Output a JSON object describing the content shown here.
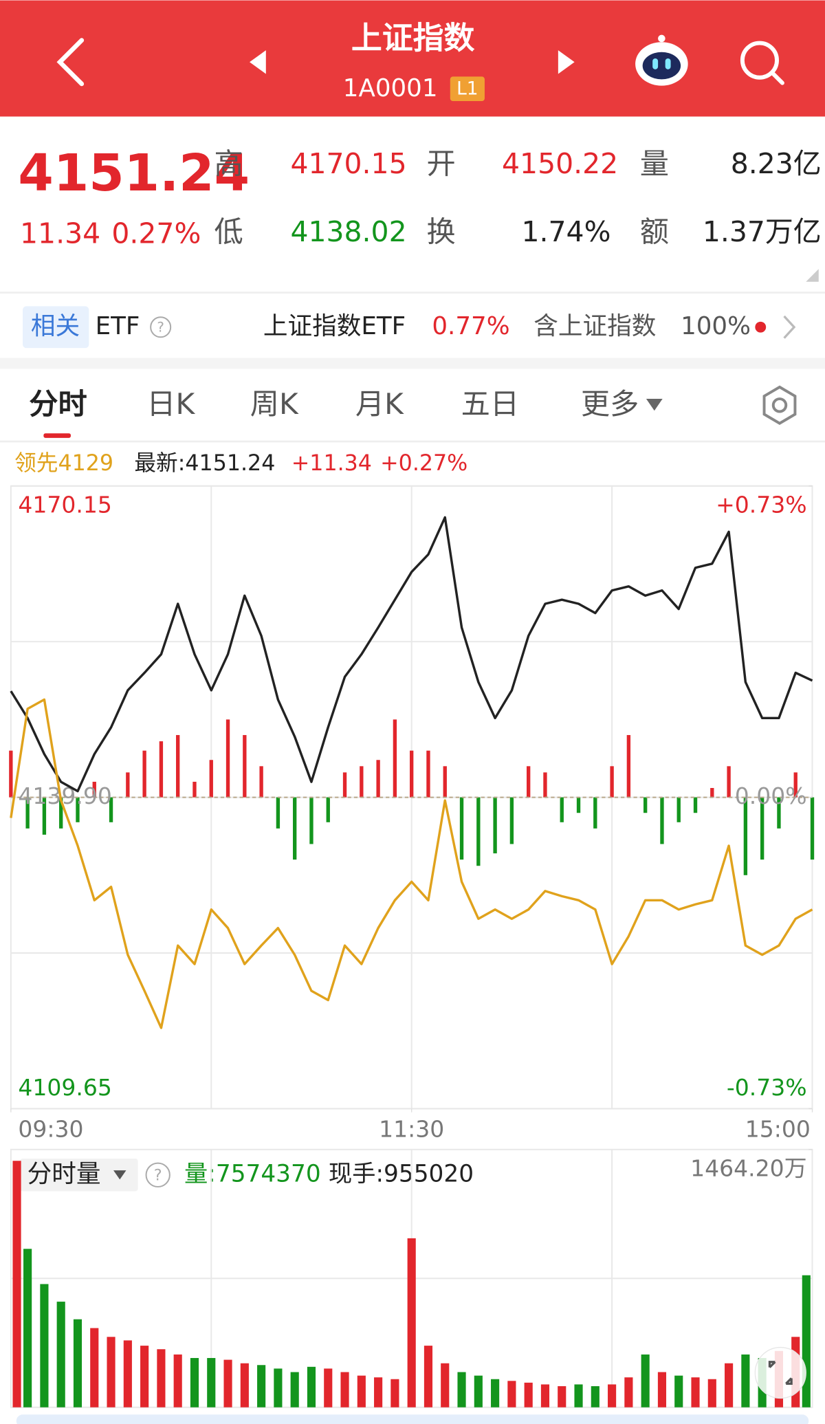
{
  "header": {
    "title": "上证指数",
    "code": "1A0001",
    "badge": "L1"
  },
  "quote": {
    "price": "4151.24",
    "change": "11.34",
    "change_pct": "0.27%",
    "fields": [
      {
        "label": "高",
        "value": "4170.15"
      },
      {
        "label": "开",
        "value": "4150.22"
      },
      {
        "label": "量",
        "value": "8.23亿"
      },
      {
        "label": "低",
        "value": "4138.02"
      },
      {
        "label": "换",
        "value": "1.74%"
      },
      {
        "label": "额",
        "value": "1.37万亿"
      }
    ]
  },
  "etf": {
    "tag": "相关",
    "etf": "ETF",
    "name": "上证指数ETF",
    "pct": "0.77%",
    "contain": "含上证指数",
    "weight": "100%"
  },
  "tabs": [
    "分时",
    "日K",
    "周K",
    "月K",
    "五日",
    "更多"
  ],
  "chart_data": [
    {
      "type": "line",
      "info": {
        "lead": "领先4129",
        "latest": "最新:4151.24",
        "change": "+11.34",
        "pct": "+0.27%"
      },
      "x": [
        0,
        5,
        10,
        15,
        20,
        25,
        30,
        35,
        40,
        45,
        50,
        55,
        60,
        65,
        70,
        75,
        80,
        85,
        90,
        95,
        100,
        105,
        110,
        115,
        120,
        125,
        130,
        135,
        140,
        145,
        150,
        155,
        160,
        165,
        170,
        175,
        180,
        185,
        190,
        195,
        200,
        205,
        210,
        215,
        220,
        225,
        230,
        235,
        240
      ],
      "xlim": [
        0,
        240
      ],
      "xticks": [
        {
          "value": 0,
          "label": "09:30"
        },
        {
          "value": 120,
          "label": "11:30"
        },
        {
          "value": 240,
          "label": "15:00"
        }
      ],
      "ylim": [
        4109.65,
        4170.15
      ],
      "yticks": [
        4109.65,
        {
          "value": 4139.9,
          "label": "4139.90"
        },
        4170.15
      ],
      "y2lim": [
        -0.73,
        0.73
      ],
      "y2ticks": [
        {
          "value": -0.73,
          "label": "-0.73%"
        },
        {
          "value": 0,
          "label": "0.00%"
        },
        {
          "value": 0.73,
          "label": "+0.73%"
        }
      ],
      "grid": true,
      "series": [
        {
          "color": "#222222",
          "values": [
            4150.22,
            4147.6,
            4144.1,
            4141.4,
            4140.5,
            4144.1,
            4146.7,
            4150.3,
            4152.0,
            4153.8,
            4158.7,
            4153.8,
            4150.3,
            4153.8,
            4159.5,
            4155.6,
            4149.4,
            4145.8,
            4141.4,
            4146.7,
            4151.6,
            4153.8,
            4156.4,
            4159.1,
            4161.8,
            4163.5,
            4167.1,
            4156.4,
            4151.1,
            4147.6,
            4150.3,
            4155.6,
            4158.7,
            4159.1,
            4158.7,
            4157.8,
            4160.0,
            4160.4,
            4159.5,
            4160.0,
            4158.2,
            4162.2,
            4162.6,
            4165.7,
            4151.1,
            4147.6,
            4147.6,
            4152.0,
            4151.24
          ]
        },
        {
          "color": "#e0a21c",
          "values": [
            4137.9,
            4148.5,
            4149.4,
            4139.6,
            4135.2,
            4129.9,
            4131.2,
            4124.6,
            4121.1,
            4117.5,
            4125.5,
            4123.7,
            4129.0,
            4127.2,
            4123.7,
            4125.5,
            4127.2,
            4124.6,
            4121.1,
            4120.2,
            4125.5,
            4123.7,
            4127.2,
            4129.9,
            4131.7,
            4129.9,
            4139.6,
            4131.7,
            4128.1,
            4129.0,
            4128.1,
            4129.0,
            4130.8,
            4130.3,
            4129.9,
            4129.0,
            4123.7,
            4126.4,
            4129.9,
            4129.9,
            4129.0,
            4129.5,
            4129.9,
            4135.2,
            4125.5,
            4124.6,
            4125.5,
            4128.1,
            4129.0
          ]
        }
      ]
    },
    {
      "type": "bar",
      "ylim": [
        -100,
        100
      ],
      "up_color": "#e2262c",
      "down_color": "#13951d",
      "values": [
        15,
        -10,
        -12,
        -10,
        -8,
        5,
        -8,
        8,
        15,
        18,
        20,
        5,
        12,
        25,
        20,
        10,
        -10,
        -20,
        -15,
        -8,
        8,
        10,
        12,
        25,
        15,
        15,
        10,
        -20,
        -22,
        -18,
        -15,
        10,
        8,
        -8,
        -5,
        -10,
        10,
        20,
        -5,
        -15,
        -8,
        -5,
        3,
        10,
        -25,
        -20,
        -10,
        8,
        -20
      ]
    },
    {
      "type": "bar",
      "title": "分时量",
      "volume": "量:7574370",
      "hand": "现手:955020",
      "ylim": [
        0,
        1464.2
      ],
      "yticks": [
        {
          "value": 1464.2,
          "label": "1464.20万"
        }
      ],
      "up_color": "#e2262c",
      "down_color": "#13951d",
      "values": [
        1400,
        900,
        700,
        600,
        500,
        450,
        400,
        380,
        350,
        330,
        300,
        280,
        280,
        270,
        250,
        240,
        220,
        200,
        230,
        220,
        200,
        180,
        170,
        160,
        960,
        350,
        250,
        200,
        180,
        160,
        150,
        140,
        130,
        120,
        130,
        120,
        130,
        170,
        300,
        200,
        180,
        170,
        160,
        250,
        300,
        280,
        320,
        400,
        750
      ]
    }
  ]
}
